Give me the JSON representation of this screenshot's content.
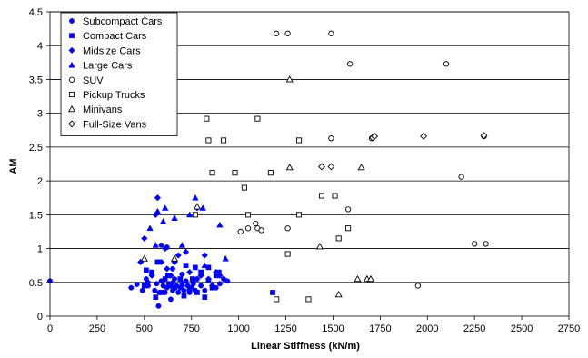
{
  "chart_data": {
    "type": "scatter",
    "xlabel": "Linear Stiffness (kN/m)",
    "ylabel": "AM",
    "xlim": [
      0,
      2750
    ],
    "ylim": [
      0,
      4.5
    ],
    "xticks": [
      0,
      250,
      500,
      750,
      1000,
      1250,
      1500,
      1750,
      2000,
      2250,
      2500,
      2750
    ],
    "yticks": [
      0,
      0.5,
      1,
      1.5,
      2,
      2.5,
      3,
      3.5,
      4,
      4.5
    ],
    "grid": "horizontal",
    "legend_position": "top-left",
    "series": [
      {
        "name": "Subcompact Cars",
        "marker": "circle-filled",
        "color": "#0000ff",
        "points": [
          [
            0,
            0.52
          ],
          [
            430,
            0.42
          ],
          [
            460,
            0.47
          ],
          [
            490,
            0.38
          ],
          [
            510,
            0.55
          ],
          [
            520,
            0.45
          ],
          [
            540,
            0.62
          ],
          [
            555,
            0.38
          ],
          [
            565,
            0.48
          ],
          [
            575,
            0.15
          ],
          [
            580,
            0.35
          ],
          [
            590,
            0.52
          ],
          [
            600,
            0.45
          ],
          [
            610,
            0.35
          ],
          [
            620,
            0.42
          ],
          [
            630,
            0.48
          ],
          [
            640,
            0.25
          ],
          [
            650,
            0.38
          ],
          [
            660,
            0.55
          ],
          [
            670,
            0.45
          ],
          [
            680,
            0.35
          ],
          [
            690,
            0.42
          ],
          [
            700,
            0.48
          ],
          [
            710,
            0.38
          ],
          [
            720,
            0.52
          ],
          [
            730,
            0.45
          ],
          [
            740,
            0.35
          ],
          [
            750,
            0.42
          ],
          [
            760,
            0.48
          ],
          [
            770,
            0.38
          ],
          [
            780,
            0.55
          ],
          [
            800,
            0.45
          ],
          [
            820,
            0.38
          ],
          [
            840,
            0.52
          ],
          [
            860,
            0.45
          ],
          [
            880,
            0.42
          ],
          [
            900,
            0.48
          ],
          [
            920,
            0.55
          ],
          [
            940,
            0.52
          ],
          [
            590,
            1.05
          ],
          [
            620,
            1.02
          ],
          [
            650,
            0.7
          ],
          [
            700,
            0.62
          ]
        ]
      },
      {
        "name": "Compact Cars",
        "marker": "square-filled",
        "color": "#0000ff",
        "points": [
          [
            500,
            0.45
          ],
          [
            510,
            0.68
          ],
          [
            540,
            0.65
          ],
          [
            560,
            0.28
          ],
          [
            570,
            0.8
          ],
          [
            590,
            0.35
          ],
          [
            610,
            0.55
          ],
          [
            625,
            0.6
          ],
          [
            640,
            0.45
          ],
          [
            660,
            0.42
          ],
          [
            690,
            0.55
          ],
          [
            710,
            0.3
          ],
          [
            720,
            0.75
          ],
          [
            740,
            0.4
          ],
          [
            755,
            0.55
          ],
          [
            770,
            0.72
          ],
          [
            780,
            0.35
          ],
          [
            800,
            0.65
          ],
          [
            820,
            0.28
          ],
          [
            840,
            0.72
          ],
          [
            860,
            0.42
          ],
          [
            880,
            0.6
          ],
          [
            895,
            0.65
          ],
          [
            1180,
            0.35
          ]
        ]
      },
      {
        "name": "Midsize Cars",
        "marker": "diamond-filled",
        "color": "#0000ff",
        "points": [
          [
            480,
            0.8
          ],
          [
            500,
            1.15
          ],
          [
            520,
            0.5
          ],
          [
            540,
            0.6
          ],
          [
            560,
            1.5
          ],
          [
            570,
            1.75
          ],
          [
            590,
            0.8
          ],
          [
            610,
            1.0
          ],
          [
            620,
            0.7
          ],
          [
            640,
            0.6
          ],
          [
            650,
            0.5
          ],
          [
            660,
            0.8
          ],
          [
            680,
            0.9
          ],
          [
            700,
            0.45
          ],
          [
            720,
            0.95
          ],
          [
            740,
            0.65
          ],
          [
            760,
            0.5
          ],
          [
            780,
            1.6
          ],
          [
            800,
            0.6
          ],
          [
            820,
            0.9
          ],
          [
            840,
            0.55
          ],
          [
            860,
            0.45
          ],
          [
            880,
            0.65
          ],
          [
            900,
            0.6
          ]
        ]
      },
      {
        "name": "Large Cars",
        "marker": "triangle-filled",
        "color": "#0000ff",
        "points": [
          [
            530,
            1.3
          ],
          [
            560,
            1.05
          ],
          [
            570,
            1.55
          ],
          [
            600,
            1.4
          ],
          [
            610,
            1.6
          ],
          [
            660,
            1.45
          ],
          [
            700,
            1.05
          ],
          [
            740,
            1.5
          ],
          [
            770,
            1.75
          ],
          [
            810,
            1.6
          ],
          [
            820,
            0.75
          ],
          [
            900,
            1.35
          ],
          [
            930,
            0.85
          ]
        ]
      },
      {
        "name": "SUV",
        "marker": "circle-open",
        "color": "#000000",
        "points": [
          [
            1200,
            4.18
          ],
          [
            1260,
            4.18
          ],
          [
            1490,
            4.18
          ],
          [
            1590,
            3.73
          ],
          [
            2100,
            3.73
          ],
          [
            1490,
            2.63
          ],
          [
            1705,
            2.63
          ],
          [
            2300,
            2.66
          ],
          [
            2180,
            2.06
          ],
          [
            1580,
            1.58
          ],
          [
            1010,
            1.25
          ],
          [
            1050,
            1.3
          ],
          [
            1090,
            1.37
          ],
          [
            1100,
            1.3
          ],
          [
            1120,
            1.27
          ],
          [
            1260,
            1.3
          ],
          [
            2250,
            1.07
          ],
          [
            2310,
            1.07
          ],
          [
            1950,
            0.45
          ]
        ]
      },
      {
        "name": "Pickup Trucks",
        "marker": "square-open",
        "color": "#000000",
        "points": [
          [
            830,
            2.92
          ],
          [
            1100,
            2.92
          ],
          [
            840,
            2.6
          ],
          [
            920,
            2.6
          ],
          [
            1320,
            2.6
          ],
          [
            860,
            2.12
          ],
          [
            980,
            2.12
          ],
          [
            1170,
            2.12
          ],
          [
            1030,
            1.9
          ],
          [
            1440,
            1.78
          ],
          [
            1510,
            1.78
          ],
          [
            770,
            1.5
          ],
          [
            1050,
            1.5
          ],
          [
            1320,
            1.5
          ],
          [
            1580,
            1.3
          ],
          [
            1530,
            1.15
          ],
          [
            1260,
            0.92
          ],
          [
            1200,
            0.25
          ],
          [
            1370,
            0.25
          ]
        ]
      },
      {
        "name": "Minivans",
        "marker": "triangle-open",
        "color": "#000000",
        "points": [
          [
            1270,
            3.5
          ],
          [
            1270,
            2.2
          ],
          [
            1650,
            2.2
          ],
          [
            780,
            1.62
          ],
          [
            1430,
            1.03
          ],
          [
            1630,
            0.55
          ],
          [
            1680,
            0.55
          ],
          [
            1700,
            0.55
          ],
          [
            1530,
            0.32
          ],
          [
            500,
            0.85
          ],
          [
            660,
            0.85
          ]
        ]
      },
      {
        "name": "Full-Size Vans",
        "marker": "diamond-open",
        "color": "#000000",
        "points": [
          [
            1440,
            2.21
          ],
          [
            1490,
            2.21
          ],
          [
            1710,
            2.64
          ],
          [
            1720,
            2.66
          ],
          [
            1980,
            2.66
          ],
          [
            2300,
            2.67
          ]
        ]
      }
    ]
  }
}
